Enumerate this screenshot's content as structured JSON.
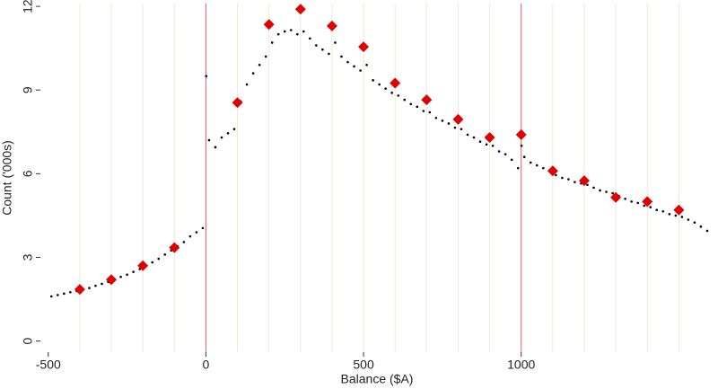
{
  "chart_data": {
    "type": "scatter",
    "x_label": "Balance ($A)",
    "y_label": "Count ('000s)",
    "xlim": [
      -525,
      1610
    ],
    "ylim": [
      -0.4,
      12.1
    ],
    "xticks": [
      -500,
      0,
      500,
      1000
    ],
    "yticks": [
      0,
      3,
      6,
      9,
      12
    ],
    "xgrid": [
      -400,
      -300,
      -200,
      -100,
      100,
      200,
      300,
      400,
      500,
      600,
      700,
      800,
      900,
      1100,
      1200,
      1300,
      1400,
      1500
    ],
    "grid_color": "#ece9d8",
    "red_lines": [
      0,
      1000
    ],
    "red_line_color": "#e06060",
    "series": [
      {
        "color": "#000000",
        "marker": "dot",
        "x": [
          -490,
          -470,
          -450,
          -430,
          -410,
          -390,
          -370,
          -350,
          -330,
          -310,
          -290,
          -270,
          -250,
          -230,
          -210,
          -190,
          -170,
          -150,
          -130,
          -110,
          -90,
          -70,
          -50,
          -30,
          -10,
          1,
          10,
          30,
          50,
          70,
          90,
          110,
          130,
          150,
          170,
          190,
          210,
          230,
          250,
          270,
          290,
          310,
          330,
          350,
          370,
          390,
          410,
          430,
          450,
          470,
          490,
          510,
          530,
          550,
          570,
          590,
          610,
          630,
          650,
          670,
          690,
          710,
          730,
          750,
          770,
          790,
          810,
          830,
          850,
          870,
          890,
          910,
          930,
          950,
          970,
          990,
          1001,
          1010,
          1030,
          1050,
          1070,
          1090,
          1110,
          1130,
          1150,
          1170,
          1190,
          1210,
          1230,
          1250,
          1270,
          1290,
          1310,
          1330,
          1350,
          1370,
          1390,
          1410,
          1430,
          1450,
          1470,
          1490,
          1510,
          1530,
          1550,
          1570,
          1590
        ],
        "values": [
          1.6,
          1.65,
          1.7,
          1.75,
          1.8,
          1.85,
          1.9,
          1.98,
          2.05,
          2.12,
          2.2,
          2.3,
          2.38,
          2.48,
          2.58,
          2.7,
          2.82,
          2.95,
          3.1,
          3.25,
          3.4,
          3.55,
          3.75,
          3.9,
          4.05,
          9.5,
          7.2,
          6.95,
          7.3,
          7.45,
          7.6,
          8.6,
          9.2,
          9.6,
          9.9,
          10.2,
          10.7,
          11.0,
          11.1,
          11.15,
          11.0,
          11.1,
          10.85,
          10.6,
          10.45,
          10.3,
          10.7,
          10.2,
          10.0,
          9.85,
          9.7,
          9.9,
          9.35,
          9.2,
          9.05,
          8.9,
          8.8,
          8.65,
          8.5,
          8.4,
          8.25,
          8.2,
          8.0,
          7.9,
          7.8,
          7.65,
          7.6,
          7.4,
          7.3,
          7.15,
          7.05,
          7.0,
          6.8,
          6.7,
          6.5,
          6.2,
          7.0,
          6.6,
          6.4,
          6.3,
          6.2,
          6.1,
          5.95,
          5.85,
          5.8,
          5.7,
          5.65,
          5.6,
          5.5,
          5.4,
          5.35,
          5.3,
          5.2,
          5.1,
          5.0,
          4.95,
          4.85,
          4.8,
          4.7,
          4.65,
          4.55,
          4.5,
          4.45,
          4.35,
          4.25,
          4.1,
          3.95
        ]
      },
      {
        "color": "#e00000",
        "marker": "diamond",
        "x": [
          -400,
          -300,
          -200,
          -100,
          100,
          200,
          300,
          400,
          500,
          600,
          700,
          800,
          900,
          1000,
          1100,
          1200,
          1300,
          1400,
          1500
        ],
        "values": [
          1.85,
          2.2,
          2.7,
          3.35,
          8.55,
          11.35,
          11.9,
          11.3,
          10.55,
          9.25,
          8.65,
          7.95,
          7.3,
          7.4,
          6.1,
          5.75,
          5.15,
          5.0,
          4.7
        ]
      }
    ]
  }
}
